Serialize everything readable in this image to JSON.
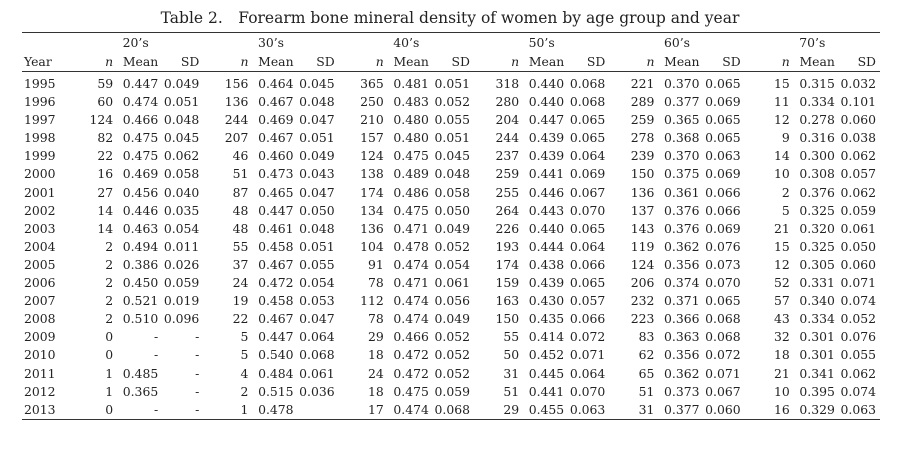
{
  "title": "Table 2.　Forearm bone mineral density of women by age group and year",
  "groups": [
    "20’s",
    "30’s",
    "40’s",
    "50’s",
    "60’s",
    "70’s"
  ],
  "columns": {
    "year": "Year",
    "n": "n",
    "mean": "Mean",
    "sd": "SD"
  },
  "rows": [
    [
      "1995",
      "59",
      "0.447",
      "0.049",
      "156",
      "0.464",
      "0.045",
      "365",
      "0.481",
      "0.051",
      "318",
      "0.440",
      "0.068",
      "221",
      "0.370",
      "0.065",
      "15",
      "0.315",
      "0.032"
    ],
    [
      "1996",
      "60",
      "0.474",
      "0.051",
      "136",
      "0.467",
      "0.048",
      "250",
      "0.483",
      "0.052",
      "280",
      "0.440",
      "0.068",
      "289",
      "0.377",
      "0.069",
      "11",
      "0.334",
      "0.101"
    ],
    [
      "1997",
      "124",
      "0.466",
      "0.048",
      "244",
      "0.469",
      "0.047",
      "210",
      "0.480",
      "0.055",
      "204",
      "0.447",
      "0.065",
      "259",
      "0.365",
      "0.065",
      "12",
      "0.278",
      "0.060"
    ],
    [
      "1998",
      "82",
      "0.475",
      "0.045",
      "207",
      "0.467",
      "0.051",
      "157",
      "0.480",
      "0.051",
      "244",
      "0.439",
      "0.065",
      "278",
      "0.368",
      "0.065",
      "9",
      "0.316",
      "0.038"
    ],
    [
      "1999",
      "22",
      "0.475",
      "0.062",
      "46",
      "0.460",
      "0.049",
      "124",
      "0.475",
      "0.045",
      "237",
      "0.439",
      "0.064",
      "239",
      "0.370",
      "0.063",
      "14",
      "0.300",
      "0.062"
    ],
    [
      "2000",
      "16",
      "0.469",
      "0.058",
      "51",
      "0.473",
      "0.043",
      "138",
      "0.489",
      "0.048",
      "259",
      "0.441",
      "0.069",
      "150",
      "0.375",
      "0.069",
      "10",
      "0.308",
      "0.057"
    ],
    [
      "2001",
      "27",
      "0.456",
      "0.040",
      "87",
      "0.465",
      "0.047",
      "174",
      "0.486",
      "0.058",
      "255",
      "0.446",
      "0.067",
      "136",
      "0.361",
      "0.066",
      "2",
      "0.376",
      "0.062"
    ],
    [
      "2002",
      "14",
      "0.446",
      "0.035",
      "48",
      "0.447",
      "0.050",
      "134",
      "0.475",
      "0.050",
      "264",
      "0.443",
      "0.070",
      "137",
      "0.376",
      "0.066",
      "5",
      "0.325",
      "0.059"
    ],
    [
      "2003",
      "14",
      "0.463",
      "0.054",
      "48",
      "0.461",
      "0.048",
      "136",
      "0.471",
      "0.049",
      "226",
      "0.440",
      "0.065",
      "143",
      "0.376",
      "0.069",
      "21",
      "0.320",
      "0.061"
    ],
    [
      "2004",
      "2",
      "0.494",
      "0.011",
      "55",
      "0.458",
      "0.051",
      "104",
      "0.478",
      "0.052",
      "193",
      "0.444",
      "0.064",
      "119",
      "0.362",
      "0.076",
      "15",
      "0.325",
      "0.050"
    ],
    [
      "2005",
      "2",
      "0.386",
      "0.026",
      "37",
      "0.467",
      "0.055",
      "91",
      "0.474",
      "0.054",
      "174",
      "0.438",
      "0.066",
      "124",
      "0.356",
      "0.073",
      "12",
      "0.305",
      "0.060"
    ],
    [
      "2006",
      "2",
      "0.450",
      "0.059",
      "24",
      "0.472",
      "0.054",
      "78",
      "0.471",
      "0.061",
      "159",
      "0.439",
      "0.065",
      "206",
      "0.374",
      "0.070",
      "52",
      "0.331",
      "0.071"
    ],
    [
      "2007",
      "2",
      "0.521",
      "0.019",
      "19",
      "0.458",
      "0.053",
      "112",
      "0.474",
      "0.056",
      "163",
      "0.430",
      "0.057",
      "232",
      "0.371",
      "0.065",
      "57",
      "0.340",
      "0.074"
    ],
    [
      "2008",
      "2",
      "0.510",
      "0.096",
      "22",
      "0.467",
      "0.047",
      "78",
      "0.474",
      "0.049",
      "150",
      "0.435",
      "0.066",
      "223",
      "0.366",
      "0.068",
      "43",
      "0.334",
      "0.052"
    ],
    [
      "2009",
      "0",
      "-",
      "-",
      "5",
      "0.447",
      "0.064",
      "29",
      "0.466",
      "0.052",
      "55",
      "0.414",
      "0.072",
      "83",
      "0.363",
      "0.068",
      "32",
      "0.301",
      "0.076"
    ],
    [
      "2010",
      "0",
      "-",
      "-",
      "5",
      "0.540",
      "0.068",
      "18",
      "0.472",
      "0.052",
      "50",
      "0.452",
      "0.071",
      "62",
      "0.356",
      "0.072",
      "18",
      "0.301",
      "0.055"
    ],
    [
      "2011",
      "1",
      "0.485",
      "-",
      "4",
      "0.484",
      "0.061",
      "24",
      "0.472",
      "0.052",
      "31",
      "0.445",
      "0.064",
      "65",
      "0.362",
      "0.071",
      "21",
      "0.341",
      "0.062"
    ],
    [
      "2012",
      "1",
      "0.365",
      "-",
      "2",
      "0.515",
      "0.036",
      "18",
      "0.475",
      "0.059",
      "51",
      "0.441",
      "0.070",
      "51",
      "0.373",
      "0.067",
      "10",
      "0.395",
      "0.074"
    ],
    [
      "2013",
      "0",
      "-",
      "-",
      "1",
      "0.478",
      "",
      "17",
      "0.474",
      "0.068",
      "29",
      "0.455",
      "0.063",
      "31",
      "0.377",
      "0.060",
      "16",
      "0.329",
      "0.063"
    ]
  ]
}
